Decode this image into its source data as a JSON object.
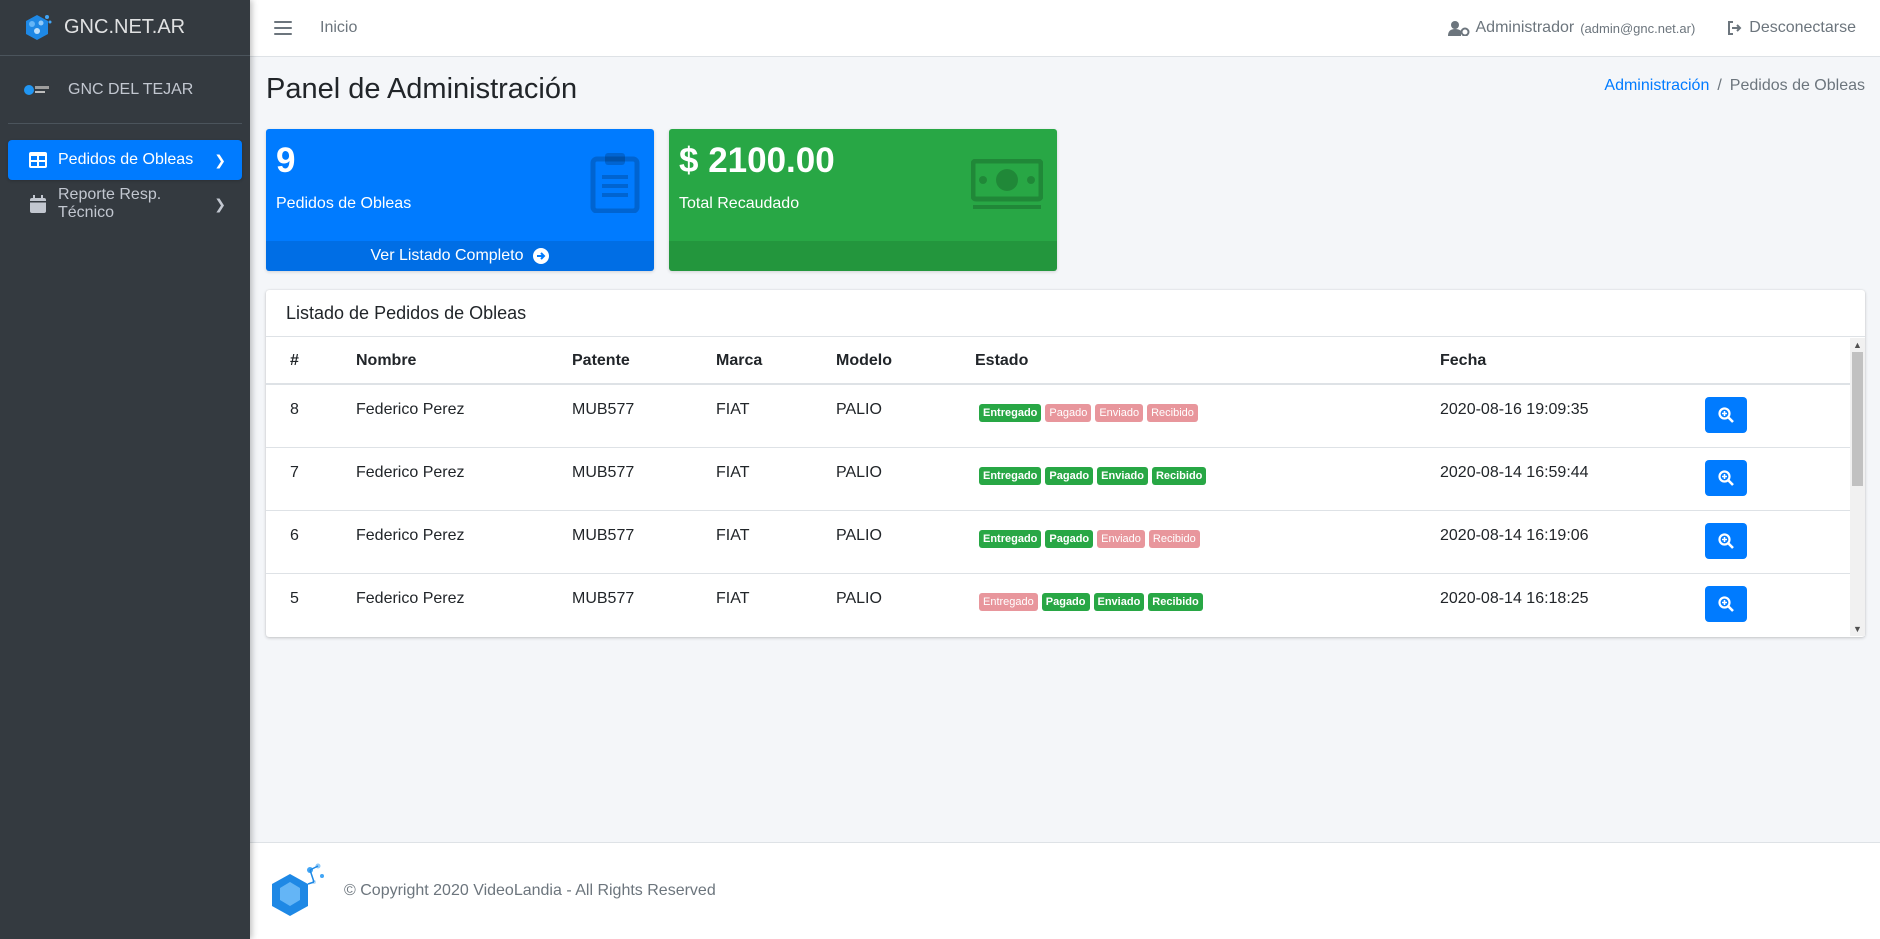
{
  "app": {
    "brand": "GNC.NET.AR"
  },
  "sidebar": {
    "company": "GNC DEL TEJAR",
    "items": [
      {
        "label": "Pedidos de Obleas",
        "icon": "table-icon",
        "active": true
      },
      {
        "label": "Reporte Resp. Técnico",
        "icon": "calendar-icon",
        "active": false
      }
    ]
  },
  "topbar": {
    "home_label": "Inicio",
    "user_name": "Administrador",
    "user_email": "(admin@gnc.net.ar)",
    "logout_label": "Desconectarse"
  },
  "page": {
    "title": "Panel de Administración",
    "breadcrumb": [
      "Administración",
      "Pedidos de Obleas"
    ]
  },
  "stats": {
    "orders": {
      "value": "9",
      "label": "Pedidos de Obleas",
      "footer": "Ver Listado Completo",
      "icon": "clipboard-icon",
      "color": "#007bff"
    },
    "revenue": {
      "value": "$ 2100.00",
      "label": "Total Recaudado",
      "icon": "money-bill-icon",
      "color": "#28a745"
    }
  },
  "orders_table": {
    "title": "Listado de Pedidos de Obleas",
    "columns": [
      "#",
      "Nombre",
      "Patente",
      "Marca",
      "Modelo",
      "Estado",
      "Fecha"
    ],
    "status_labels": [
      "Entregado",
      "Pagado",
      "Enviado",
      "Recibido"
    ],
    "rows": [
      {
        "id": "8",
        "name": "Federico Perez",
        "plate": "MUB577",
        "brand": "FIAT",
        "model": "PALIO",
        "status": [
          true,
          false,
          false,
          false
        ],
        "date": "2020-08-16 19:09:35"
      },
      {
        "id": "7",
        "name": "Federico Perez",
        "plate": "MUB577",
        "brand": "FIAT",
        "model": "PALIO",
        "status": [
          true,
          true,
          true,
          true
        ],
        "date": "2020-08-14 16:59:44"
      },
      {
        "id": "6",
        "name": "Federico Perez",
        "plate": "MUB577",
        "brand": "FIAT",
        "model": "PALIO",
        "status": [
          true,
          true,
          false,
          false
        ],
        "date": "2020-08-14 16:19:06"
      },
      {
        "id": "5",
        "name": "Federico Perez",
        "plate": "MUB577",
        "brand": "FIAT",
        "model": "PALIO",
        "status": [
          false,
          true,
          true,
          true
        ],
        "date": "2020-08-14 16:18:25"
      }
    ],
    "action_icon": "search-plus-icon"
  },
  "footer": {
    "text": "© Copyright 2020 VideoLandia - All Rights Reserved"
  },
  "colors": {
    "primary": "#007bff",
    "success": "#28a745",
    "sidebar": "#343a40",
    "badge_off": "#e8969c"
  }
}
